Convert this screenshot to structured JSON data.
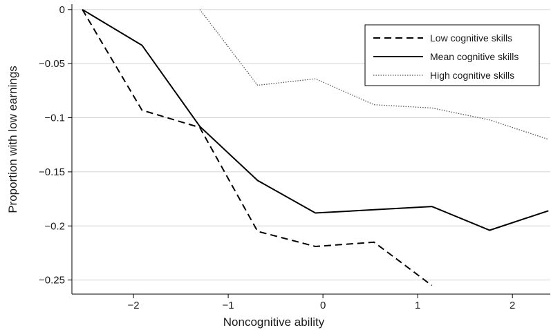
{
  "chart_data": {
    "type": "line",
    "title": "",
    "xlabel": "Noncognitive ability",
    "ylabel": "Proportion with low earnings",
    "xlim": [
      -2.65,
      2.4
    ],
    "ylim": [
      -0.263,
      0.005
    ],
    "xticks": [
      -2,
      -1,
      0,
      1,
      2
    ],
    "xtick_labels": [
      "−2",
      "−1",
      "0",
      "1",
      "2"
    ],
    "yticks": [
      0,
      -0.05,
      -0.1,
      -0.15,
      -0.2,
      -0.25
    ],
    "ytick_labels": [
      "0",
      "−0.05",
      "−0.1",
      "−0.15",
      "−0.2",
      "−0.25"
    ],
    "grid": "horizontal",
    "legend_position": "top-right",
    "series": [
      {
        "name": "Low cognitive skills",
        "style": "dashed",
        "color": "#000000",
        "x": [
          -2.54,
          -1.91,
          -1.3,
          -0.69,
          -0.08,
          0.54,
          1.15
        ],
        "y": [
          0.0,
          -0.093,
          -0.109,
          -0.205,
          -0.219,
          -0.215,
          -0.255
        ]
      },
      {
        "name": "Mean cognitive skills",
        "style": "solid",
        "color": "#000000",
        "x": [
          -2.54,
          -1.91,
          -1.3,
          -0.69,
          -0.08,
          0.54,
          1.15,
          1.76,
          2.38
        ],
        "y": [
          0.0,
          -0.033,
          -0.108,
          -0.158,
          -0.188,
          -0.185,
          -0.182,
          -0.204,
          -0.186
        ]
      },
      {
        "name": "High cognitive skills",
        "style": "dotted",
        "color": "#555555",
        "x": [
          -1.3,
          -0.69,
          -0.08,
          0.54,
          1.15,
          1.76,
          2.38
        ],
        "y": [
          0.0,
          -0.07,
          -0.064,
          -0.088,
          -0.091,
          -0.102,
          -0.12
        ]
      }
    ]
  }
}
